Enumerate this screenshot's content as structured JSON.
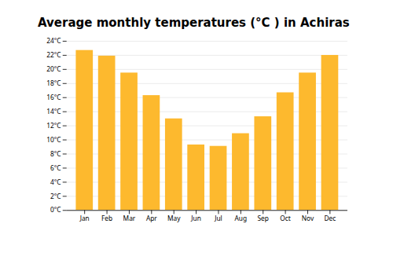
{
  "chart_data": {
    "type": "bar",
    "title": "Average monthly temperatures (°C ) in Achiras",
    "categories": [
      "Jan",
      "Feb",
      "Mar",
      "Apr",
      "May",
      "Jun",
      "Jul",
      "Aug",
      "Sep",
      "Oct",
      "Nov",
      "Dec"
    ],
    "values": [
      22.7,
      21.9,
      19.5,
      16.3,
      13.0,
      9.3,
      9.1,
      10.9,
      13.3,
      16.7,
      19.5,
      22.0
    ],
    "color": "#FDB92E",
    "ylim": [
      0,
      24
    ],
    "yticks": [
      {
        "value": 0,
        "label": "0°C"
      },
      {
        "value": 2,
        "label": "2°C"
      },
      {
        "value": 4,
        "label": "4°C"
      },
      {
        "value": 6,
        "label": "6°C"
      },
      {
        "value": 8,
        "label": "8°C"
      },
      {
        "value": 10,
        "label": "10°C"
      },
      {
        "value": 12,
        "label": "12°C"
      },
      {
        "value": 14,
        "label": "14°C"
      },
      {
        "value": 16,
        "label": "16°C"
      },
      {
        "value": 18,
        "label": "18°C"
      },
      {
        "value": 20,
        "label": "20°C"
      },
      {
        "value": 22,
        "label": "22°C"
      },
      {
        "value": 24,
        "label": "24°C"
      }
    ],
    "grid": true
  }
}
